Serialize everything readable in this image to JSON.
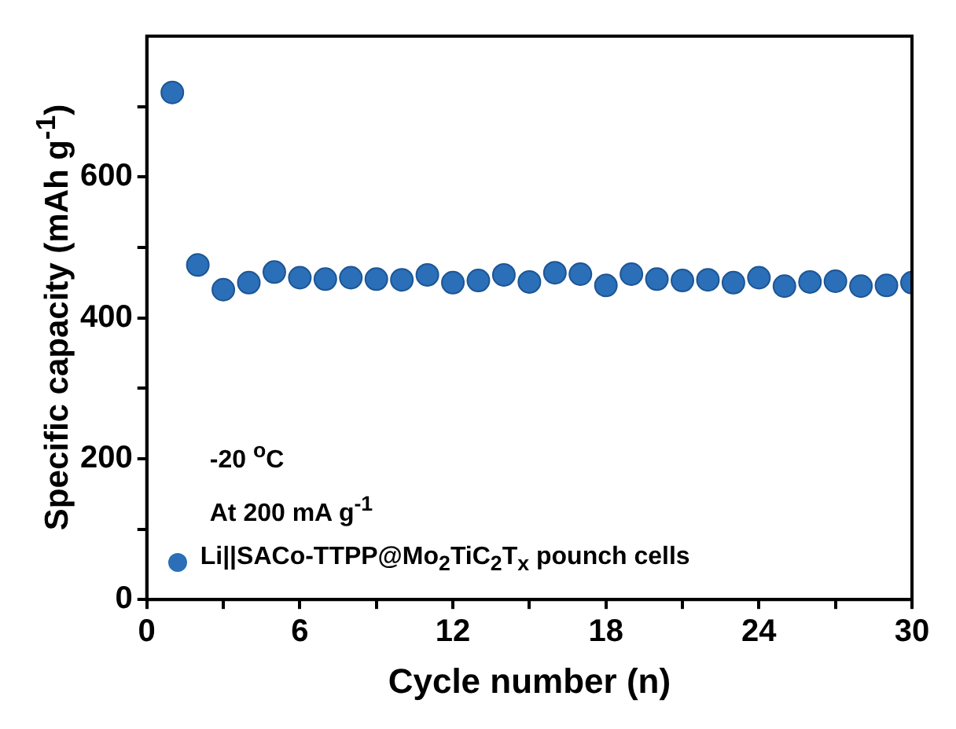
{
  "chart_data": {
    "type": "scatter",
    "xlabel": "Cycle number (n)",
    "ylabel": "Specific capacity (mAh g$^{-1}$)",
    "x": [
      1,
      2,
      3,
      4,
      5,
      6,
      7,
      8,
      9,
      10,
      11,
      12,
      13,
      14,
      15,
      16,
      17,
      18,
      19,
      20,
      21,
      22,
      23,
      24,
      25,
      26,
      27,
      28,
      29,
      30
    ],
    "series": [
      {
        "name": "Li||SACo-TTPP@Mo$_{2}$TiC$_{2}$T$_{x}$ pounch cells",
        "color": "#2a6fb8",
        "values": [
          720,
          475,
          440,
          450,
          465,
          457,
          455,
          457,
          455,
          454,
          461,
          450,
          453,
          461,
          451,
          464,
          462,
          446,
          462,
          455,
          453,
          454,
          450,
          457,
          445,
          451,
          452,
          445,
          446,
          450
        ]
      }
    ],
    "xlim": [
      0,
      30
    ],
    "xticks": [
      0,
      {
        "value": 3,
        "label": null
      },
      6,
      {
        "value": 9,
        "label": null
      },
      12,
      {
        "value": 15,
        "label": null
      },
      18,
      {
        "value": 21,
        "label": null
      },
      24,
      {
        "value": 27,
        "label": null
      },
      30
    ],
    "ylim": [
      0,
      800
    ],
    "yticks": [
      0,
      {
        "value": 100,
        "label": null
      },
      200,
      {
        "value": 300,
        "label": null
      },
      400,
      {
        "value": 500,
        "label": null
      },
      600,
      {
        "value": 700,
        "label": null
      }
    ],
    "annotations": [
      "-20 $^{o}$C",
      "At 200 mA g$^{-1}$"
    ],
    "marker": "circle",
    "legend": "bottom left",
    "grid": false
  }
}
